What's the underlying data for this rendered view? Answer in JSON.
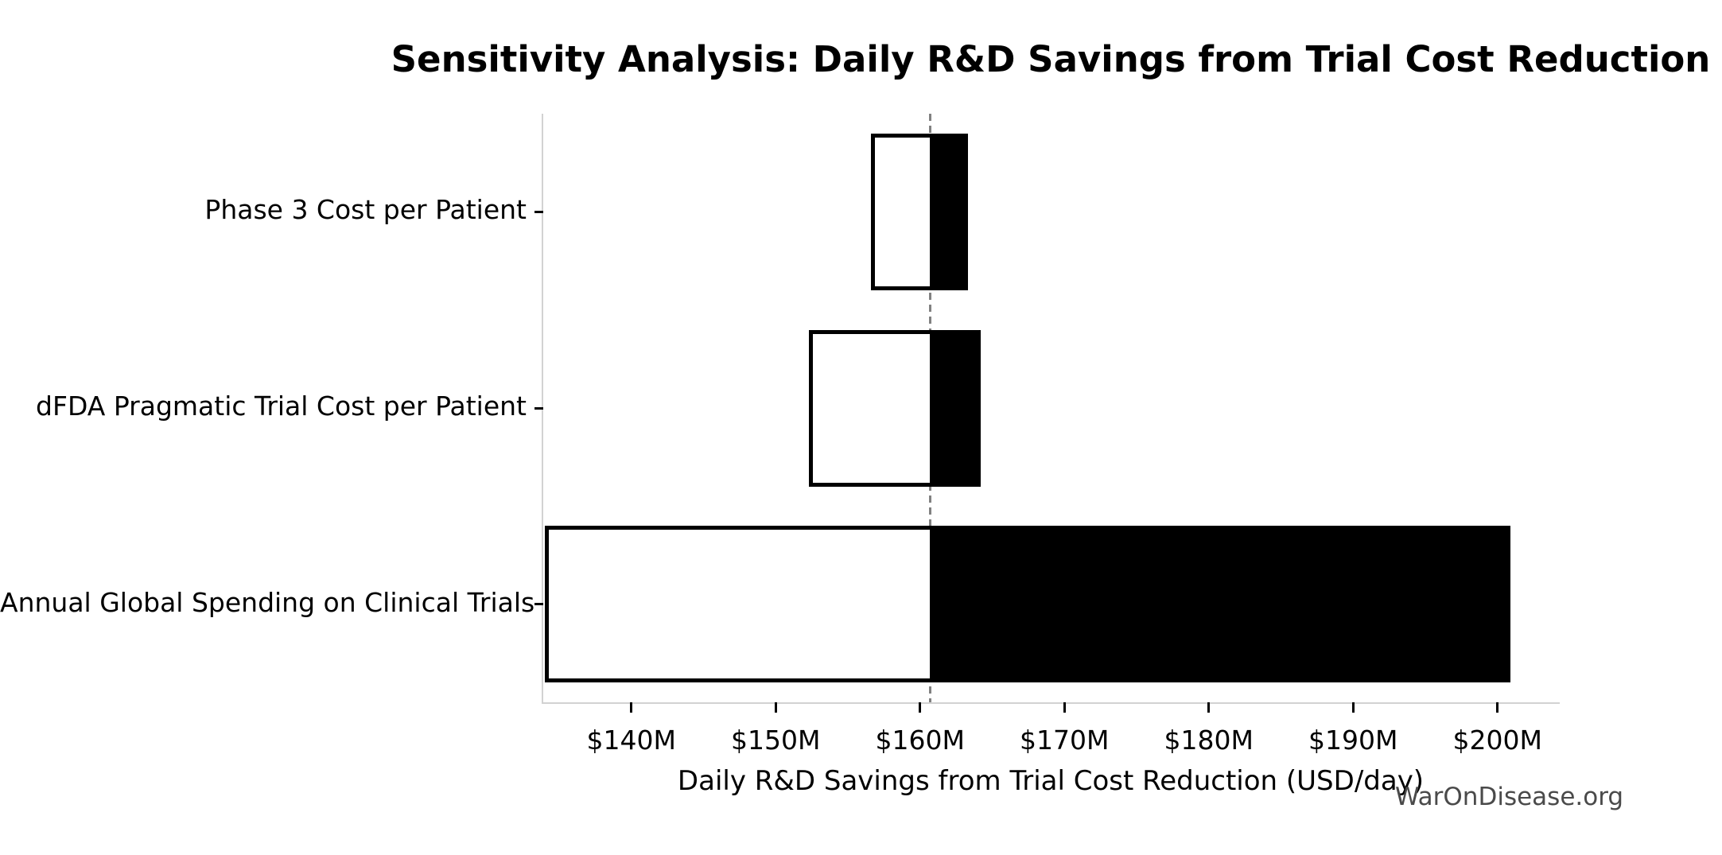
{
  "title": "Sensitivity Analysis: Daily R&D Savings from Trial Cost Reduction",
  "watermark": "WarOnDisease.org",
  "chart_data": {
    "type": "bar",
    "subtype": "tornado",
    "orientation": "horizontal",
    "title": "Sensitivity Analysis: Daily R&D Savings from Trial Cost Reduction",
    "xlabel": "Daily R&D Savings from Trial Cost Reduction (USD/day)",
    "ylabel": "",
    "categories": [
      "Phase 3 Cost per Patient",
      "dFDA Pragmatic Trial Cost per Patient",
      "Annual Global Spending on Clinical Trials"
    ],
    "bars": [
      {
        "label": "Phase 3 Cost per Patient",
        "low": 156.6,
        "high": 163.3
      },
      {
        "label": "dFDA Pragmatic Trial Cost per Patient",
        "low": 152.3,
        "high": 164.2
      },
      {
        "label": "Annual Global Spending on Clinical Trials",
        "low": 134.0,
        "high": 200.9
      }
    ],
    "baseline": 160.7,
    "value_format": {
      "prefix": "$",
      "suffix": "M"
    },
    "xlim": [
      133.9,
      204.2
    ],
    "xticks": [
      140,
      150,
      160,
      170,
      180,
      190,
      200
    ],
    "xtick_labels": [
      "$140M",
      "$150M",
      "$160M",
      "$170M",
      "$180M",
      "$190M",
      "$200M"
    ],
    "grid": false,
    "legend": "none",
    "colors": {
      "low_fill": "#ffffff",
      "high_fill": "#000000",
      "bar_edge": "#000000",
      "baseline_line": "#818181",
      "spine": "#d2d2d2",
      "tick": "#000000",
      "text": "#000000",
      "watermark": "#4a4a4a"
    }
  }
}
